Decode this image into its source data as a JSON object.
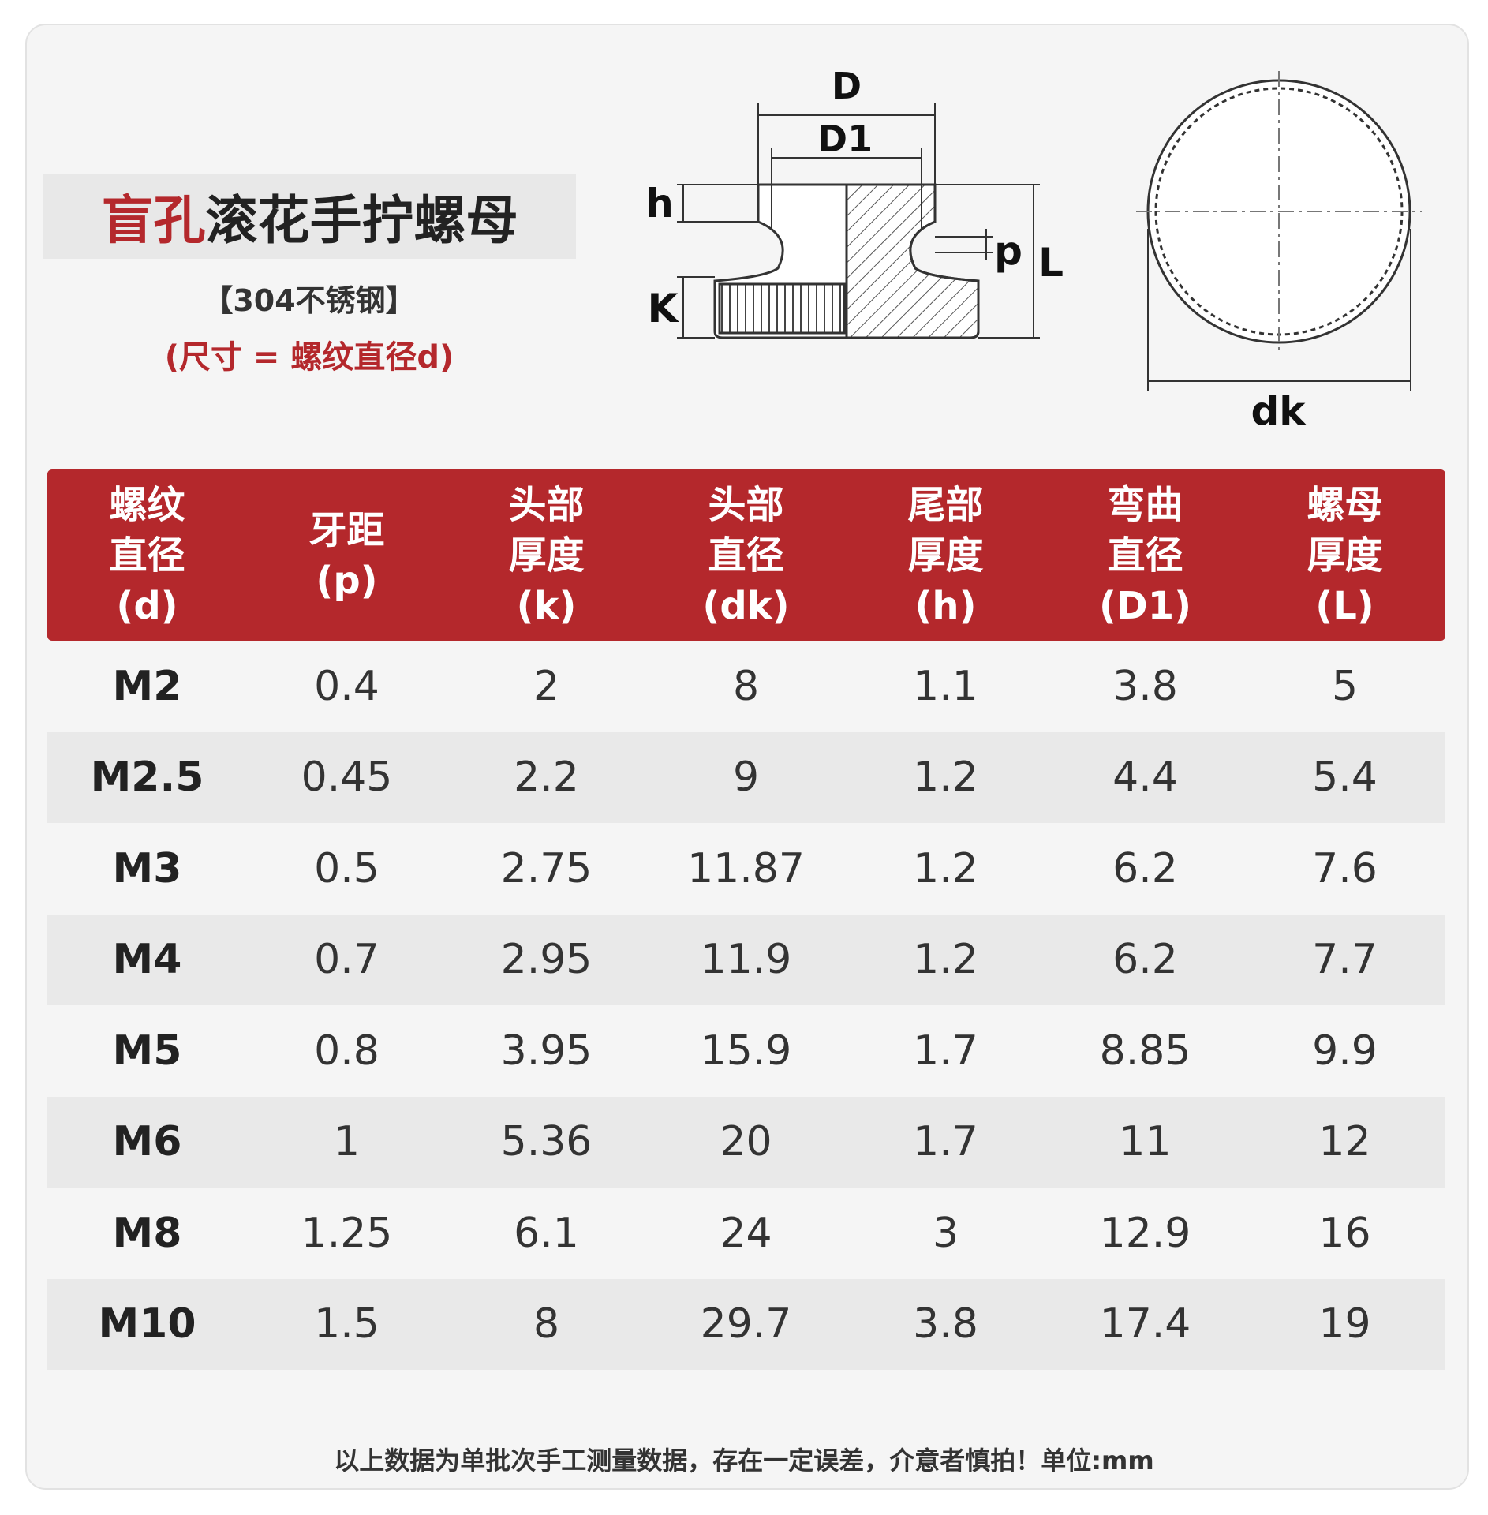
{
  "title": {
    "accent": "盲孔",
    "main": "滚花手拧螺母"
  },
  "material": "【304不锈钢】",
  "size_note": "(尺寸 = 螺纹直径d)",
  "diagram": {
    "D": "D",
    "D1": "D1",
    "h": "h",
    "K": "K",
    "p": "p",
    "L": "L",
    "dk": "dk"
  },
  "table": {
    "header": [
      [
        "螺纹",
        "直径",
        "(d)"
      ],
      [
        "牙距",
        "(p)"
      ],
      [
        "头部",
        "厚度",
        "(k)"
      ],
      [
        "头部",
        "直径",
        "(dk)"
      ],
      [
        "尾部",
        "厚度",
        "(h)"
      ],
      [
        "弯曲",
        "直径",
        "(D1)"
      ],
      [
        "螺母",
        "厚度",
        "(L)"
      ]
    ],
    "rows": [
      [
        "M2",
        "0.4",
        "2",
        "8",
        "1.1",
        "3.8",
        "5"
      ],
      [
        "M2.5",
        "0.45",
        "2.2",
        "9",
        "1.2",
        "4.4",
        "5.4"
      ],
      [
        "M3",
        "0.5",
        "2.75",
        "11.87",
        "1.2",
        "6.2",
        "7.6"
      ],
      [
        "M4",
        "0.7",
        "2.95",
        "11.9",
        "1.2",
        "6.2",
        "7.7"
      ],
      [
        "M5",
        "0.8",
        "3.95",
        "15.9",
        "1.7",
        "8.85",
        "9.9"
      ],
      [
        "M6",
        "1",
        "5.36",
        "20",
        "1.7",
        "11",
        "12"
      ],
      [
        "M8",
        "1.25",
        "6.1",
        "24",
        "3",
        "12.9",
        "16"
      ],
      [
        "M10",
        "1.5",
        "8",
        "29.7",
        "3.8",
        "17.4",
        "19"
      ]
    ]
  },
  "footer": "以上数据为单批次手工测量数据，存在一定误差，介意者慎拍！单位:mm"
}
